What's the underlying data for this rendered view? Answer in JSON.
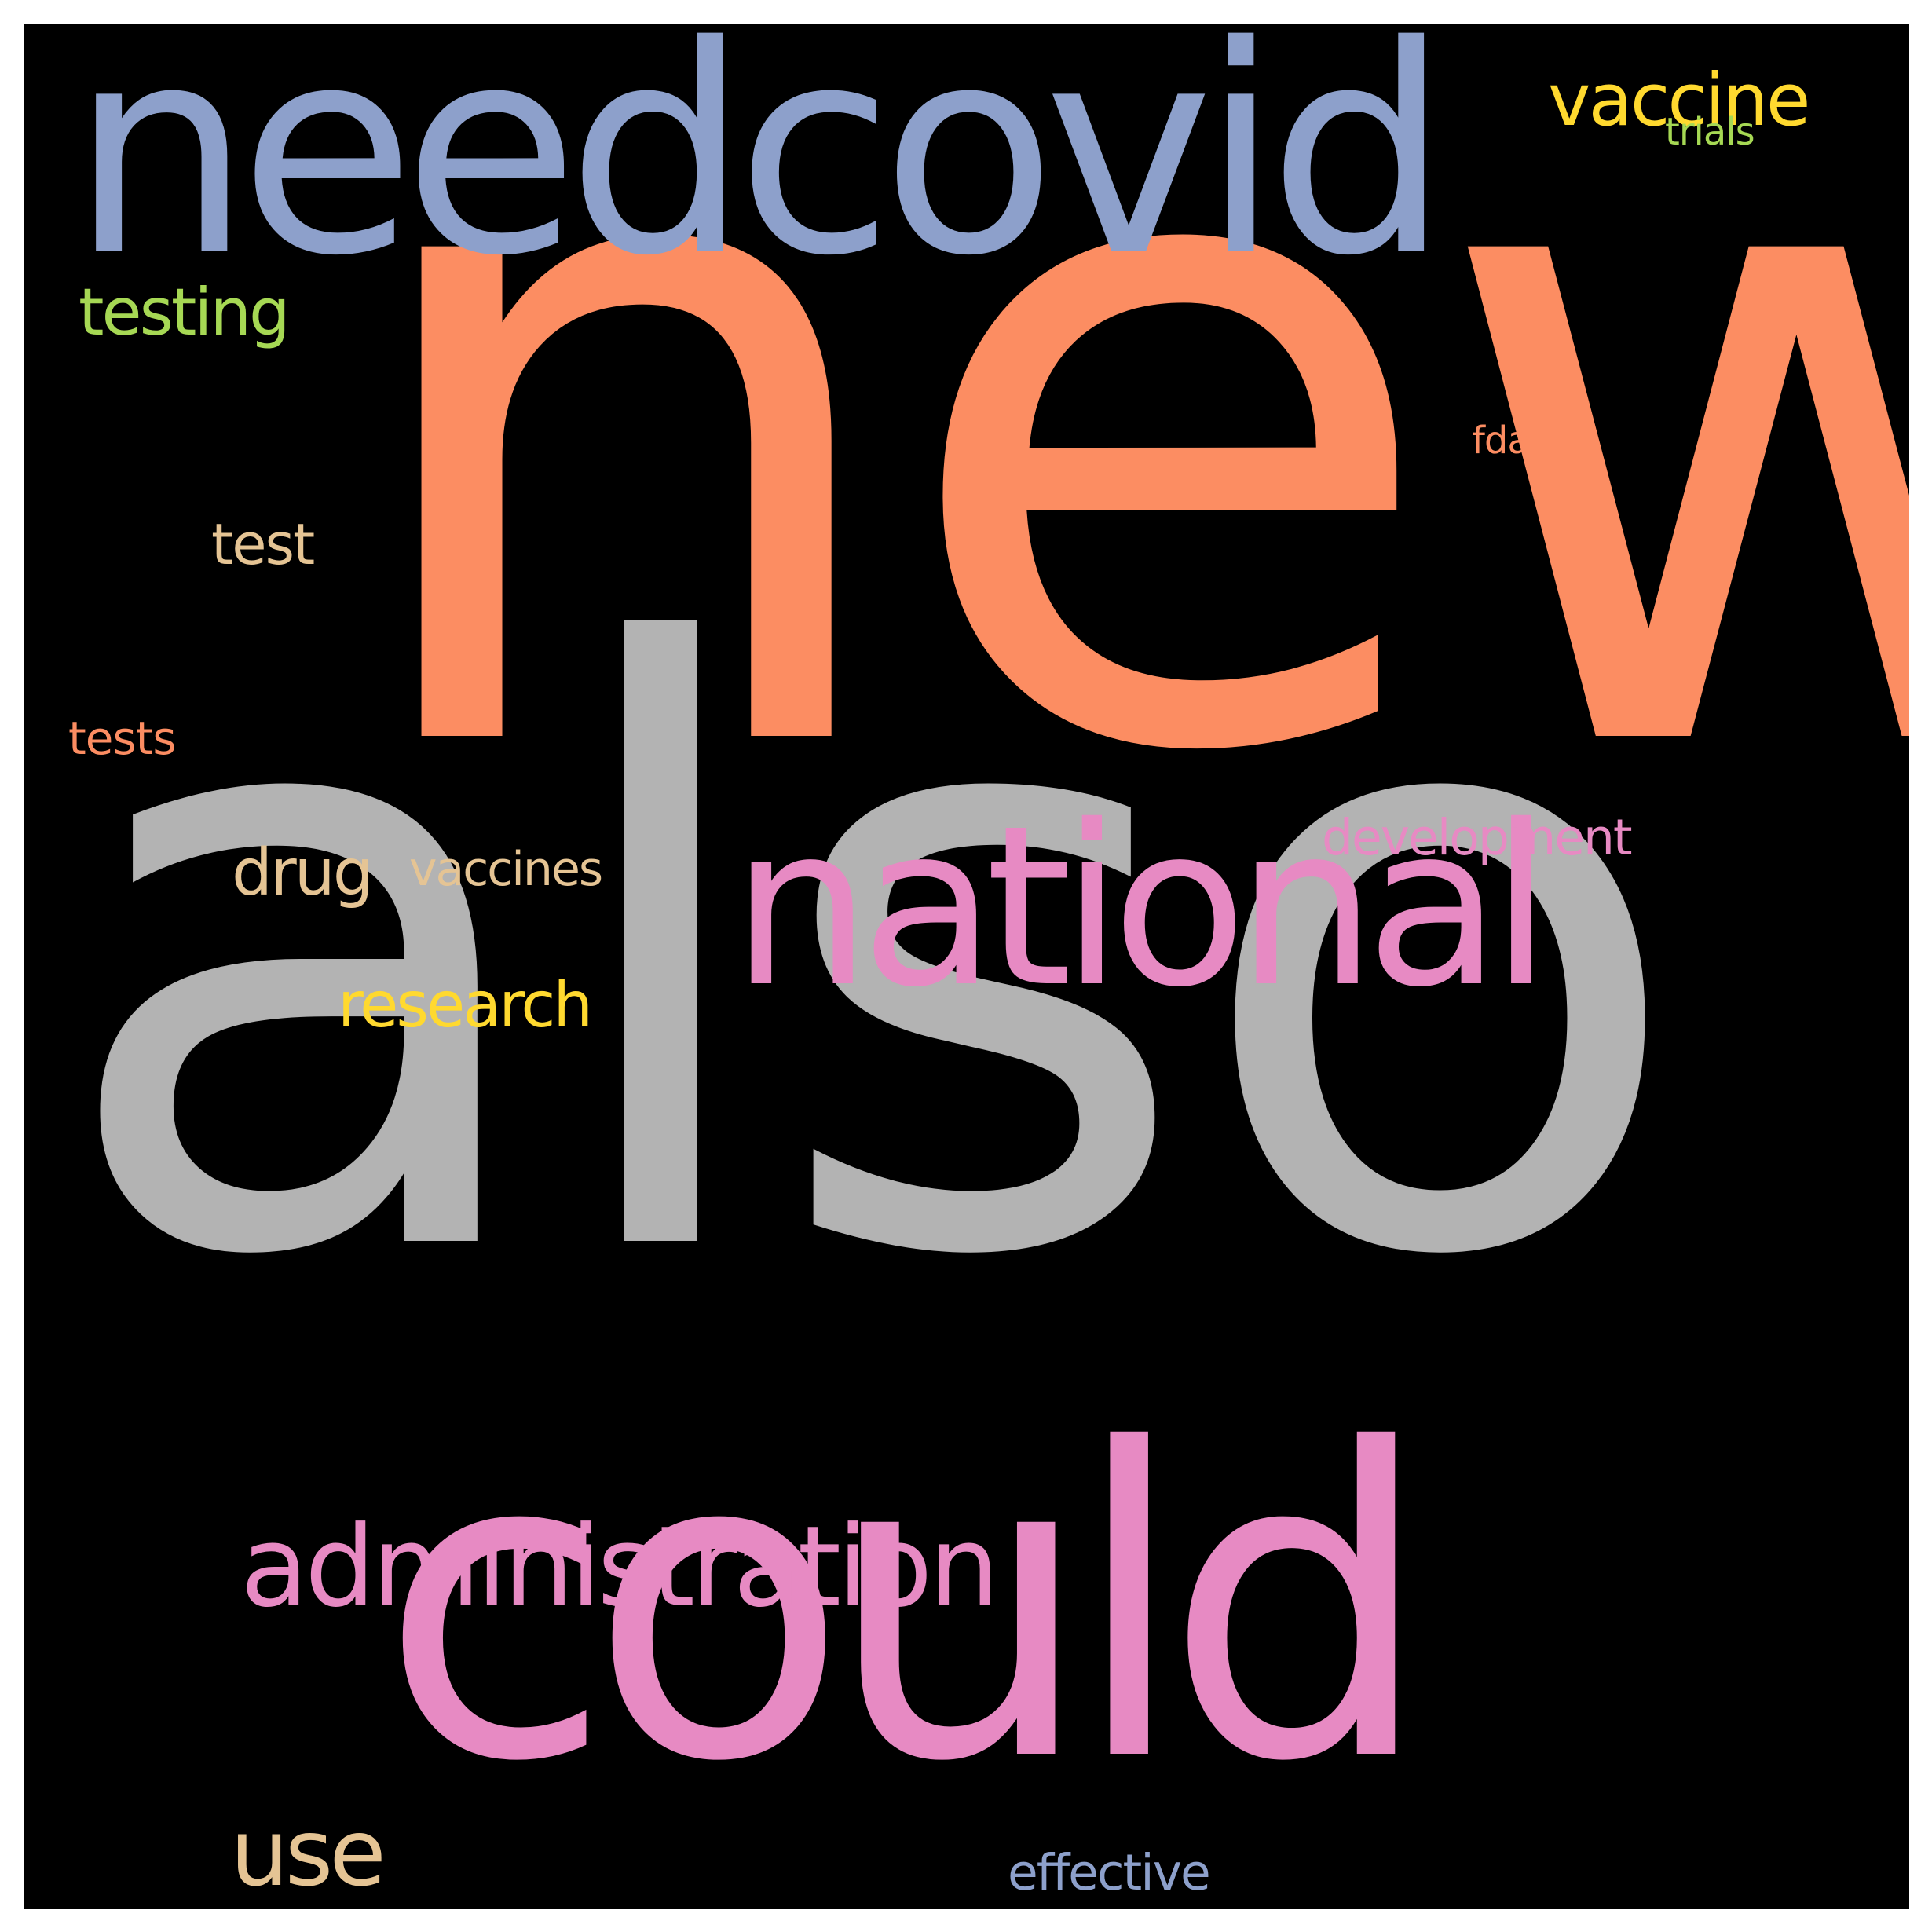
{
  "canvas": {
    "background": "#000000",
    "border_background": "#ffffff"
  },
  "words": [
    {
      "key": "new",
      "text": "new",
      "color": "#fc8d62"
    },
    {
      "key": "also",
      "text": "also",
      "color": "#b3b3b3"
    },
    {
      "key": "needcovid",
      "text": "needcovid",
      "color": "#8da0cb"
    },
    {
      "key": "could",
      "text": "could",
      "color": "#e78ac3"
    },
    {
      "key": "national",
      "text": "national",
      "color": "#e78ac3"
    },
    {
      "key": "administration",
      "text": "administration",
      "color": "#e78ac3"
    },
    {
      "key": "vaccine",
      "text": "vaccine",
      "color": "#ffd92f"
    },
    {
      "key": "testing",
      "text": "testing",
      "color": "#a6d854"
    },
    {
      "key": "use",
      "text": "use",
      "color": "#e5c494"
    },
    {
      "key": "research",
      "text": "research",
      "color": "#ffd92f"
    },
    {
      "key": "drug",
      "text": "drug",
      "color": "#e5c494"
    },
    {
      "key": "test",
      "text": "test",
      "color": "#e5c494"
    },
    {
      "key": "development",
      "text": "development",
      "color": "#e78ac3"
    },
    {
      "key": "vaccines",
      "text": "vaccines",
      "color": "#e5c494"
    },
    {
      "key": "effective",
      "text": "effective",
      "color": "#8da0cb"
    },
    {
      "key": "tests",
      "text": "tests",
      "color": "#fc8d62"
    },
    {
      "key": "trials",
      "text": "trials",
      "color": "#a6d854"
    },
    {
      "key": "fda",
      "text": "fda",
      "color": "#fc8d62"
    }
  ]
}
